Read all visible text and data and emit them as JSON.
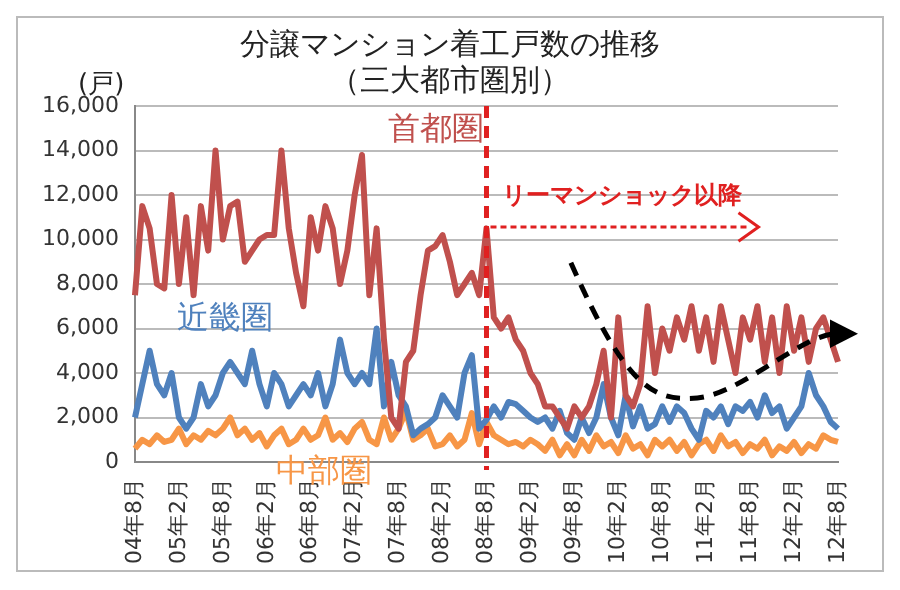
{
  "chart_data": {
    "type": "line",
    "title": "分譲マンション着工戸数の推移",
    "subtitle": "（三大都市圏別）",
    "ylabel": "(戸)",
    "categories": [
      "04年8月",
      null,
      null,
      null,
      null,
      null,
      "05年2月",
      null,
      null,
      null,
      null,
      null,
      "05年8月",
      null,
      null,
      null,
      null,
      null,
      "06年2月",
      null,
      null,
      null,
      null,
      null,
      "06年8月",
      null,
      null,
      null,
      null,
      null,
      "07年2月",
      null,
      null,
      null,
      null,
      null,
      "07年8月",
      null,
      null,
      null,
      null,
      null,
      "08年2月",
      null,
      null,
      null,
      null,
      null,
      "08年8月",
      null,
      null,
      null,
      null,
      null,
      "09年2月",
      null,
      null,
      null,
      null,
      null,
      "09年8月",
      null,
      null,
      null,
      null,
      null,
      "10年2月",
      null,
      null,
      null,
      null,
      null,
      "10年8月",
      null,
      null,
      null,
      null,
      null,
      "11年2月",
      null,
      null,
      null,
      null,
      null,
      "11年8月",
      null,
      null,
      null,
      null,
      null,
      "12年2月",
      null,
      null,
      null,
      null,
      null,
      "12年8月"
    ],
    "series": [
      {
        "name": "首都圏",
        "color": "#c0504d",
        "values": [
          7500,
          11500,
          10500,
          8000,
          7800,
          12000,
          8000,
          11000,
          7500,
          11500,
          9500,
          14000,
          10000,
          11500,
          11700,
          9000,
          9500,
          10000,
          10200,
          10200,
          14000,
          10500,
          8500,
          7000,
          11000,
          9500,
          11500,
          10500,
          8000,
          9500,
          12000,
          13800,
          7500,
          10500,
          5500,
          2000,
          1500,
          4500,
          5000,
          7500,
          9500,
          9700,
          10200,
          9000,
          7500,
          8000,
          8500,
          7500,
          10500,
          6500,
          6000,
          6500,
          5500,
          5000,
          4000,
          3500,
          2500,
          2500,
          2000,
          1500,
          2500,
          2000,
          2500,
          3500,
          5000,
          2000,
          6500,
          3000,
          2500,
          3500,
          7000,
          4000,
          6000,
          5000,
          6500,
          5500,
          7000,
          5000,
          6500,
          4500,
          7000,
          5500,
          4000,
          6500,
          5500,
          7000,
          4500,
          6500,
          4000,
          7000,
          5000,
          6500,
          4500,
          6000,
          6500,
          5500,
          4500
        ]
      },
      {
        "name": "近畿圏",
        "color": "#4f81bd",
        "values": [
          2000,
          3500,
          5000,
          3500,
          3000,
          4000,
          2000,
          1500,
          2000,
          3500,
          2500,
          3000,
          4000,
          4500,
          4000,
          3500,
          5000,
          3500,
          2500,
          4000,
          3500,
          2500,
          3000,
          3500,
          3000,
          4000,
          2500,
          3500,
          5500,
          4000,
          3500,
          4000,
          3500,
          6000,
          2500,
          4500,
          3000,
          2500,
          1200,
          1500,
          1700,
          2000,
          3000,
          2500,
          2000,
          4000,
          4800,
          1500,
          1900,
          2500,
          2000,
          2700,
          2600,
          2300,
          2000,
          1800,
          2000,
          1500,
          2300,
          1300,
          1000,
          2000,
          1300,
          2000,
          3500,
          2000,
          1200,
          3000,
          1600,
          2500,
          1500,
          1700,
          2500,
          1800,
          2500,
          2200,
          1500,
          1000,
          2300,
          2000,
          2500,
          1700,
          2500,
          2300,
          2700,
          2000,
          3000,
          2200,
          2500,
          1500,
          2000,
          2500,
          4000,
          3000,
          2500,
          1800,
          1500
        ]
      },
      {
        "name": "中部圏",
        "color": "#f79646",
        "values": [
          600,
          1000,
          800,
          1200,
          900,
          1000,
          1500,
          800,
          1200,
          1000,
          1400,
          1200,
          1500,
          2000,
          1200,
          1500,
          1000,
          1300,
          700,
          1200,
          1500,
          800,
          1000,
          1500,
          1000,
          1200,
          2000,
          1000,
          1300,
          900,
          1500,
          1800,
          1000,
          800,
          2000,
          1000,
          1500,
          2300,
          1000,
          1200,
          1500,
          700,
          800,
          1200,
          700,
          1000,
          2200,
          800,
          1800,
          1200,
          1000,
          800,
          900,
          700,
          1000,
          800,
          500,
          1000,
          300,
          800,
          300,
          1000,
          500,
          1200,
          700,
          900,
          400,
          1200,
          600,
          800,
          300,
          1000,
          700,
          1000,
          500,
          900,
          300,
          800,
          1000,
          500,
          1200,
          700,
          900,
          400,
          800,
          600,
          1000,
          300,
          700,
          500,
          900,
          400,
          800,
          600,
          1200,
          1000,
          900
        ]
      }
    ],
    "ylim": [
      0,
      16000
    ],
    "yticks": [
      0,
      {
        "value": 2000,
        "label": "2,000"
      },
      {
        "value": 4000,
        "label": "4,000"
      },
      {
        "value": 6000,
        "label": "6,000"
      },
      {
        "value": 8000,
        "label": "8,000"
      },
      {
        "value": 10000,
        "label": "10,000"
      },
      {
        "value": 12000,
        "label": "12,000"
      },
      {
        "value": 14000,
        "label": "14,000"
      },
      {
        "value": 16000,
        "label": "16,000"
      }
    ],
    "grid": "y",
    "legend": false,
    "marker": "none",
    "line_style": "solid",
    "ref_lines": [
      {
        "axis": "x",
        "value": "08年8月",
        "color": "#e02020",
        "line_style": "dashed"
      }
    ],
    "annotations": [
      {
        "text": "リーマンショック以降",
        "x": "08年8月"
      }
    ]
  }
}
